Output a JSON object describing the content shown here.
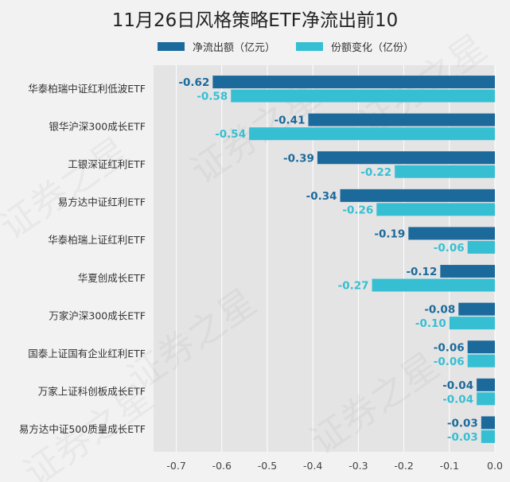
{
  "chart_data": {
    "type": "bar",
    "orientation": "horizontal",
    "title": "11月26日风格策略ETF净流出前10",
    "categories": [
      "华泰柏瑞中证红利低波ETF",
      "银华沪深300成长ETF",
      "工银深证红利ETF",
      "易方达中证红利ETF",
      "华泰柏瑞上证红利ETF",
      "华夏创成长ETF",
      "万家沪深300成长ETF",
      "国泰上证国有企业红利ETF",
      "万家上证科创板成长ETF",
      "易方达中证500质量成长ETF"
    ],
    "series": [
      {
        "name": "净流出额（亿元）",
        "color": "#1c6a9c",
        "values": [
          -0.62,
          -0.41,
          -0.39,
          -0.34,
          -0.19,
          -0.12,
          -0.08,
          -0.06,
          -0.04,
          -0.03
        ],
        "labels": [
          "-0.62",
          "-0.41",
          "-0.39",
          "-0.34",
          "-0.19",
          "-0.12",
          "-0.08",
          "-0.06",
          "-0.04",
          "-0.03"
        ]
      },
      {
        "name": "份额变化（亿份）",
        "color": "#36bfd3",
        "values": [
          -0.58,
          -0.54,
          -0.22,
          -0.26,
          -0.06,
          -0.27,
          -0.1,
          -0.06,
          -0.04,
          -0.03
        ],
        "labels": [
          "-0.58",
          "-0.54",
          "-0.22",
          "-0.26",
          "-0.06",
          "-0.27",
          "-0.10",
          "-0.06",
          "-0.04",
          "-0.03"
        ]
      }
    ],
    "xlim": [
      -0.75,
      0.0
    ],
    "xticks": [
      -0.7,
      -0.6,
      -0.5,
      -0.4,
      -0.3,
      -0.2,
      -0.1,
      0.0
    ],
    "xtick_labels": [
      "-0.7",
      "-0.6",
      "-0.5",
      "-0.4",
      "-0.3",
      "-0.2",
      "-0.1",
      "0.0"
    ],
    "grid": true,
    "legend_position": "top",
    "xlabel": "",
    "ylabel": "",
    "plot_background": "#e4e4e4",
    "watermark": "证券之星"
  }
}
